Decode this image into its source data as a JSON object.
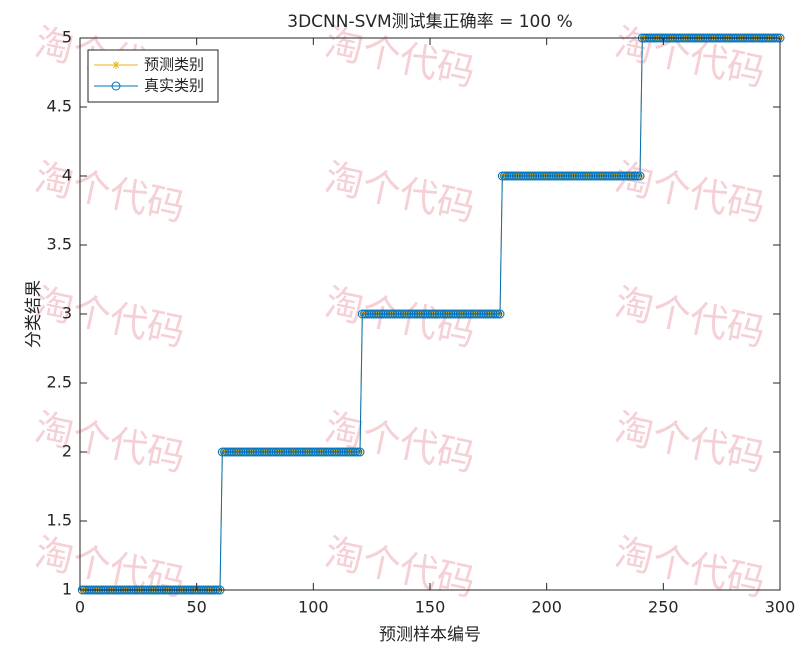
{
  "watermark": "淘个代码",
  "chart_data": {
    "type": "line",
    "title": "3DCNN-SVM测试集正确率 = 100 %",
    "x_label": "预测样本编号",
    "y_label": "分类结果",
    "xlim": [
      0,
      300
    ],
    "ylim": [
      1,
      5
    ],
    "xticks": [
      0,
      50,
      100,
      150,
      200,
      250,
      300
    ],
    "yticks": [
      1,
      1.5,
      2,
      2.5,
      3,
      3.5,
      4,
      4.5,
      5
    ],
    "grid": false,
    "legend": "upper left",
    "x": [
      1,
      2,
      3,
      4,
      5,
      6,
      7,
      8,
      9,
      10,
      11,
      12,
      13,
      14,
      15,
      16,
      17,
      18,
      19,
      20,
      21,
      22,
      23,
      24,
      25,
      26,
      27,
      28,
      29,
      30,
      31,
      32,
      33,
      34,
      35,
      36,
      37,
      38,
      39,
      40,
      41,
      42,
      43,
      44,
      45,
      46,
      47,
      48,
      49,
      50,
      51,
      52,
      53,
      54,
      55,
      56,
      57,
      58,
      59,
      60,
      61,
      62,
      63,
      64,
      65,
      66,
      67,
      68,
      69,
      70,
      71,
      72,
      73,
      74,
      75,
      76,
      77,
      78,
      79,
      80,
      81,
      82,
      83,
      84,
      85,
      86,
      87,
      88,
      89,
      90,
      91,
      92,
      93,
      94,
      95,
      96,
      97,
      98,
      99,
      100,
      101,
      102,
      103,
      104,
      105,
      106,
      107,
      108,
      109,
      110,
      111,
      112,
      113,
      114,
      115,
      116,
      117,
      118,
      119,
      120,
      121,
      122,
      123,
      124,
      125,
      126,
      127,
      128,
      129,
      130,
      131,
      132,
      133,
      134,
      135,
      136,
      137,
      138,
      139,
      140,
      141,
      142,
      143,
      144,
      145,
      146,
      147,
      148,
      149,
      150,
      151,
      152,
      153,
      154,
      155,
      156,
      157,
      158,
      159,
      160,
      161,
      162,
      163,
      164,
      165,
      166,
      167,
      168,
      169,
      170,
      171,
      172,
      173,
      174,
      175,
      176,
      177,
      178,
      179,
      180,
      181,
      182,
      183,
      184,
      185,
      186,
      187,
      188,
      189,
      190,
      191,
      192,
      193,
      194,
      195,
      196,
      197,
      198,
      199,
      200,
      201,
      202,
      203,
      204,
      205,
      206,
      207,
      208,
      209,
      210,
      211,
      212,
      213,
      214,
      215,
      216,
      217,
      218,
      219,
      220,
      221,
      222,
      223,
      224,
      225,
      226,
      227,
      228,
      229,
      230,
      231,
      232,
      233,
      234,
      235,
      236,
      237,
      238,
      239,
      240,
      241,
      242,
      243,
      244,
      245,
      246,
      247,
      248,
      249,
      250,
      251,
      252,
      253,
      254,
      255,
      256,
      257,
      258,
      259,
      260,
      261,
      262,
      263,
      264,
      265,
      266,
      267,
      268,
      269,
      270,
      271,
      272,
      273,
      274,
      275,
      276,
      277,
      278,
      279,
      280,
      281,
      282,
      283,
      284,
      285,
      286,
      287,
      288,
      289,
      290,
      291,
      292,
      293,
      294,
      295,
      296,
      297,
      298,
      299,
      300
    ],
    "series": [
      {
        "name": "预测类别",
        "color": "#EDB120",
        "marker": "star",
        "values": [
          1,
          1,
          1,
          1,
          1,
          1,
          1,
          1,
          1,
          1,
          1,
          1,
          1,
          1,
          1,
          1,
          1,
          1,
          1,
          1,
          1,
          1,
          1,
          1,
          1,
          1,
          1,
          1,
          1,
          1,
          1,
          1,
          1,
          1,
          1,
          1,
          1,
          1,
          1,
          1,
          1,
          1,
          1,
          1,
          1,
          1,
          1,
          1,
          1,
          1,
          1,
          1,
          1,
          1,
          1,
          1,
          1,
          1,
          1,
          1,
          2,
          2,
          2,
          2,
          2,
          2,
          2,
          2,
          2,
          2,
          2,
          2,
          2,
          2,
          2,
          2,
          2,
          2,
          2,
          2,
          2,
          2,
          2,
          2,
          2,
          2,
          2,
          2,
          2,
          2,
          2,
          2,
          2,
          2,
          2,
          2,
          2,
          2,
          2,
          2,
          2,
          2,
          2,
          2,
          2,
          2,
          2,
          2,
          2,
          2,
          2,
          2,
          2,
          2,
          2,
          2,
          2,
          2,
          2,
          2,
          3,
          3,
          3,
          3,
          3,
          3,
          3,
          3,
          3,
          3,
          3,
          3,
          3,
          3,
          3,
          3,
          3,
          3,
          3,
          3,
          3,
          3,
          3,
          3,
          3,
          3,
          3,
          3,
          3,
          3,
          3,
          3,
          3,
          3,
          3,
          3,
          3,
          3,
          3,
          3,
          3,
          3,
          3,
          3,
          3,
          3,
          3,
          3,
          3,
          3,
          3,
          3,
          3,
          3,
          3,
          3,
          3,
          3,
          3,
          3,
          4,
          4,
          4,
          4,
          4,
          4,
          4,
          4,
          4,
          4,
          4,
          4,
          4,
          4,
          4,
          4,
          4,
          4,
          4,
          4,
          4,
          4,
          4,
          4,
          4,
          4,
          4,
          4,
          4,
          4,
          4,
          4,
          4,
          4,
          4,
          4,
          4,
          4,
          4,
          4,
          4,
          4,
          4,
          4,
          4,
          4,
          4,
          4,
          4,
          4,
          4,
          4,
          4,
          4,
          4,
          4,
          4,
          4,
          4,
          4,
          5,
          5,
          5,
          5,
          5,
          5,
          5,
          5,
          5,
          5,
          5,
          5,
          5,
          5,
          5,
          5,
          5,
          5,
          5,
          5,
          5,
          5,
          5,
          5,
          5,
          5,
          5,
          5,
          5,
          5,
          5,
          5,
          5,
          5,
          5,
          5,
          5,
          5,
          5,
          5,
          5,
          5,
          5,
          5,
          5,
          5,
          5,
          5,
          5,
          5,
          5,
          5,
          5,
          5,
          5,
          5,
          5,
          5,
          5,
          5
        ]
      },
      {
        "name": "真实类别",
        "color": "#0072BD",
        "marker": "circle",
        "values": [
          1,
          1,
          1,
          1,
          1,
          1,
          1,
          1,
          1,
          1,
          1,
          1,
          1,
          1,
          1,
          1,
          1,
          1,
          1,
          1,
          1,
          1,
          1,
          1,
          1,
          1,
          1,
          1,
          1,
          1,
          1,
          1,
          1,
          1,
          1,
          1,
          1,
          1,
          1,
          1,
          1,
          1,
          1,
          1,
          1,
          1,
          1,
          1,
          1,
          1,
          1,
          1,
          1,
          1,
          1,
          1,
          1,
          1,
          1,
          1,
          2,
          2,
          2,
          2,
          2,
          2,
          2,
          2,
          2,
          2,
          2,
          2,
          2,
          2,
          2,
          2,
          2,
          2,
          2,
          2,
          2,
          2,
          2,
          2,
          2,
          2,
          2,
          2,
          2,
          2,
          2,
          2,
          2,
          2,
          2,
          2,
          2,
          2,
          2,
          2,
          2,
          2,
          2,
          2,
          2,
          2,
          2,
          2,
          2,
          2,
          2,
          2,
          2,
          2,
          2,
          2,
          2,
          2,
          2,
          2,
          3,
          3,
          3,
          3,
          3,
          3,
          3,
          3,
          3,
          3,
          3,
          3,
          3,
          3,
          3,
          3,
          3,
          3,
          3,
          3,
          3,
          3,
          3,
          3,
          3,
          3,
          3,
          3,
          3,
          3,
          3,
          3,
          3,
          3,
          3,
          3,
          3,
          3,
          3,
          3,
          3,
          3,
          3,
          3,
          3,
          3,
          3,
          3,
          3,
          3,
          3,
          3,
          3,
          3,
          3,
          3,
          3,
          3,
          3,
          3,
          4,
          4,
          4,
          4,
          4,
          4,
          4,
          4,
          4,
          4,
          4,
          4,
          4,
          4,
          4,
          4,
          4,
          4,
          4,
          4,
          4,
          4,
          4,
          4,
          4,
          4,
          4,
          4,
          4,
          4,
          4,
          4,
          4,
          4,
          4,
          4,
          4,
          4,
          4,
          4,
          4,
          4,
          4,
          4,
          4,
          4,
          4,
          4,
          4,
          4,
          4,
          4,
          4,
          4,
          4,
          4,
          4,
          4,
          4,
          4,
          5,
          5,
          5,
          5,
          5,
          5,
          5,
          5,
          5,
          5,
          5,
          5,
          5,
          5,
          5,
          5,
          5,
          5,
          5,
          5,
          5,
          5,
          5,
          5,
          5,
          5,
          5,
          5,
          5,
          5,
          5,
          5,
          5,
          5,
          5,
          5,
          5,
          5,
          5,
          5,
          5,
          5,
          5,
          5,
          5,
          5,
          5,
          5,
          5,
          5,
          5,
          5,
          5,
          5,
          5,
          5,
          5,
          5,
          5,
          5
        ]
      }
    ]
  }
}
